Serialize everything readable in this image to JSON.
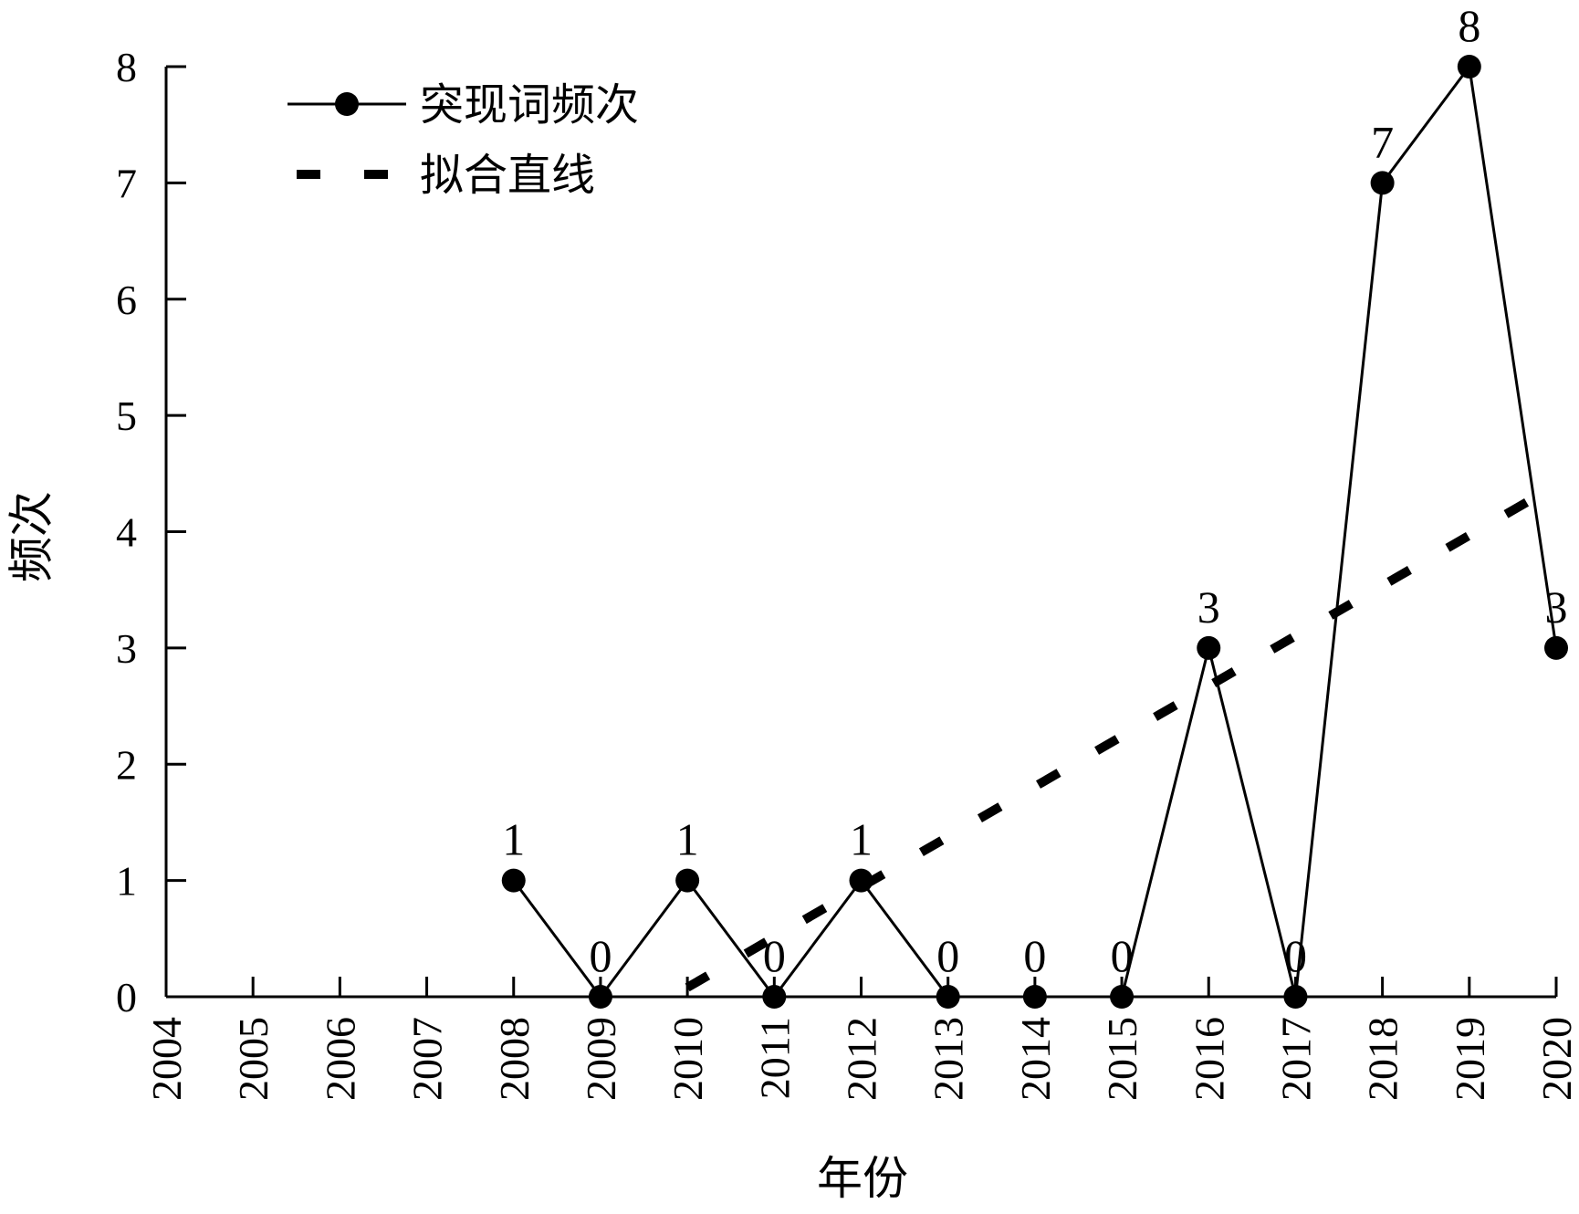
{
  "chart_data": {
    "type": "line",
    "title": "",
    "xlabel": "年份",
    "ylabel": "频次",
    "x": [
      2004,
      2005,
      2006,
      2007,
      2008,
      2009,
      2010,
      2011,
      2012,
      2013,
      2014,
      2015,
      2016,
      2017,
      2018,
      2019,
      2020
    ],
    "xlim": [
      2004,
      2020
    ],
    "ylim": [
      0,
      8
    ],
    "yticks": [
      0,
      1,
      2,
      3,
      4,
      5,
      6,
      7,
      8
    ],
    "grid": false,
    "legend_position": "top-left",
    "series": [
      {
        "name": "突现词频次",
        "style": "solid line with filled circle markers",
        "color": "#000000",
        "x": [
          2008,
          2009,
          2010,
          2011,
          2012,
          2013,
          2014,
          2015,
          2016,
          2017,
          2018,
          2019,
          2020
        ],
        "values": [
          1,
          0,
          1,
          0,
          1,
          0,
          0,
          0,
          3,
          0,
          7,
          8,
          3
        ]
      },
      {
        "name": "拟合直线",
        "style": "dashed line",
        "color": "#000000",
        "x": [
          2010,
          2020
        ],
        "values": [
          0.08,
          4.4
        ]
      }
    ]
  }
}
